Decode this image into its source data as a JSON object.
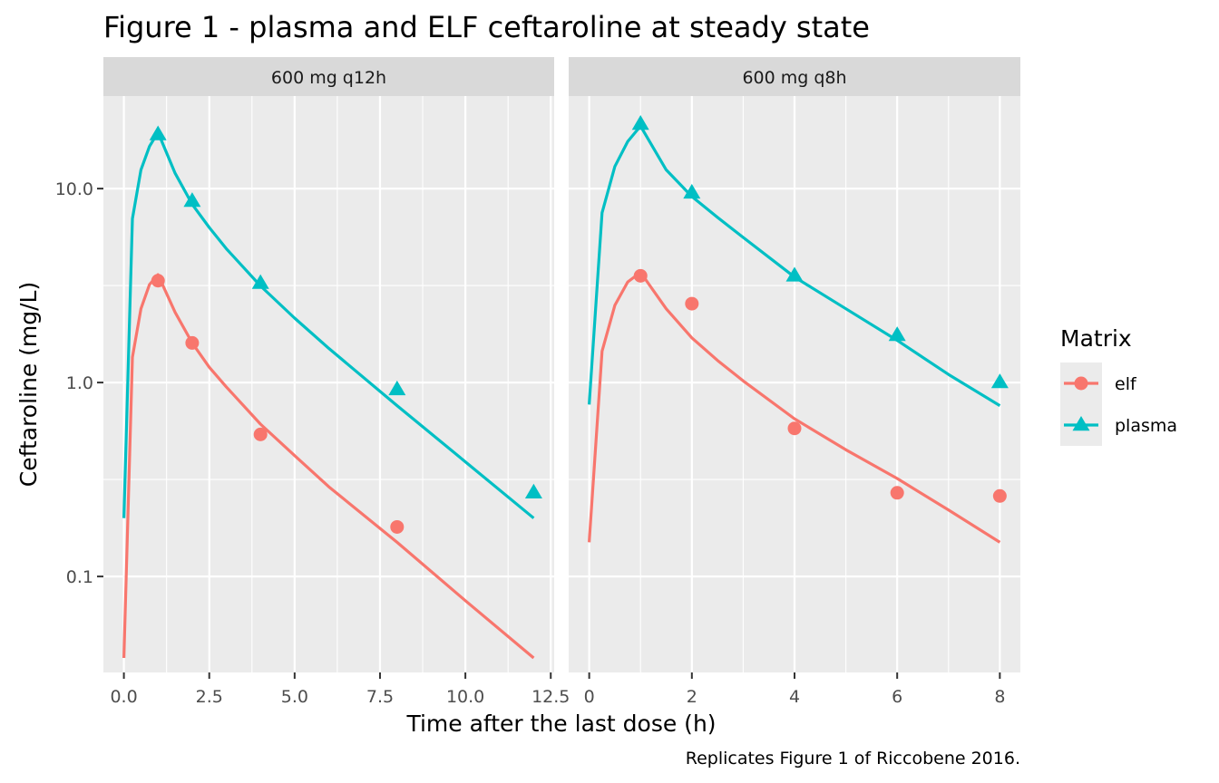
{
  "chart_data": {
    "type": "line",
    "title": "Figure 1 - plasma and ELF ceftaroline at steady state",
    "xlabel": "Time after the last dose (h)",
    "ylabel": "Ceftaroline (mg/L)",
    "caption": "Replicates Figure 1 of Riccobene 2016.",
    "y_scale": "log10",
    "ylim": [
      0.032,
      30
    ],
    "y_ticks": [
      0.1,
      1.0,
      10.0
    ],
    "y_tick_labels": [
      "0.1",
      "1.0",
      "10.0"
    ],
    "grid": true,
    "legend": {
      "title": "Matrix",
      "position": "right",
      "entries": [
        {
          "name": "elf",
          "color": "#F8766D",
          "marker": "circle"
        },
        {
          "name": "plasma",
          "color": "#00BFC4",
          "marker": "triangle"
        }
      ]
    },
    "panels": [
      {
        "title": "600 mg q12h",
        "xlim": [
          -0.6,
          12.6
        ],
        "x_ticks": [
          0,
          2.5,
          5,
          7.5,
          10,
          12.5
        ],
        "x_tick_labels": [
          "0.0",
          "2.5",
          "5.0",
          "7.5",
          "10.0",
          "12.5"
        ],
        "series": [
          {
            "name": "plasma",
            "line": {
              "x": [
                0,
                0.25,
                0.5,
                0.75,
                1,
                1.5,
                2,
                2.5,
                3,
                4,
                5,
                6,
                8,
                10,
                12
              ],
              "y": [
                0.2,
                7,
                12.5,
                16.5,
                19.5,
                12,
                8.3,
                6.3,
                4.9,
                3.15,
                2.15,
                1.5,
                0.76,
                0.39,
                0.2
              ]
            },
            "observed": {
              "x": [
                1,
                2,
                4,
                8,
                12
              ],
              "y": [
                19,
                8.6,
                3.25,
                0.92,
                0.27
              ]
            }
          },
          {
            "name": "elf",
            "line": {
              "x": [
                0,
                0.25,
                0.5,
                0.75,
                1,
                1.5,
                2,
                2.5,
                3,
                4,
                5,
                6,
                8,
                10,
                12
              ],
              "y": [
                0.038,
                1.35,
                2.4,
                3.2,
                3.6,
                2.3,
                1.6,
                1.2,
                0.95,
                0.61,
                0.42,
                0.29,
                0.15,
                0.075,
                0.038
              ]
            },
            "observed": {
              "x": [
                1,
                2,
                4,
                8
              ],
              "y": [
                3.35,
                1.6,
                0.54,
                0.18
              ]
            }
          }
        ]
      },
      {
        "title": "600 mg q8h",
        "xlim": [
          -0.4,
          8.4
        ],
        "x_ticks": [
          0,
          2,
          4,
          6,
          8
        ],
        "x_tick_labels": [
          "0",
          "2",
          "4",
          "6",
          "8"
        ],
        "series": [
          {
            "name": "plasma",
            "line": {
              "x": [
                0,
                0.25,
                0.5,
                0.75,
                1,
                1.5,
                2,
                2.5,
                3,
                4,
                5,
                6,
                7,
                8
              ],
              "y": [
                0.77,
                7.5,
                13,
                17.5,
                21,
                12.5,
                9.1,
                7.1,
                5.6,
                3.5,
                2.4,
                1.65,
                1.1,
                0.76
              ]
            },
            "observed": {
              "x": [
                1,
                2,
                4,
                6,
                8
              ],
              "y": [
                21.5,
                9.5,
                3.55,
                1.75,
                1.0
              ]
            }
          },
          {
            "name": "elf",
            "line": {
              "x": [
                0,
                0.25,
                0.5,
                0.75,
                1,
                1.5,
                2,
                2.5,
                3,
                4,
                5,
                6,
                7,
                8
              ],
              "y": [
                0.15,
                1.45,
                2.5,
                3.3,
                3.7,
                2.4,
                1.7,
                1.3,
                1.02,
                0.65,
                0.45,
                0.32,
                0.22,
                0.15
              ]
            },
            "observed": {
              "x": [
                1,
                2,
                4,
                6,
                8
              ],
              "y": [
                3.55,
                2.55,
                0.58,
                0.27,
                0.26
              ]
            }
          }
        ]
      }
    ]
  }
}
